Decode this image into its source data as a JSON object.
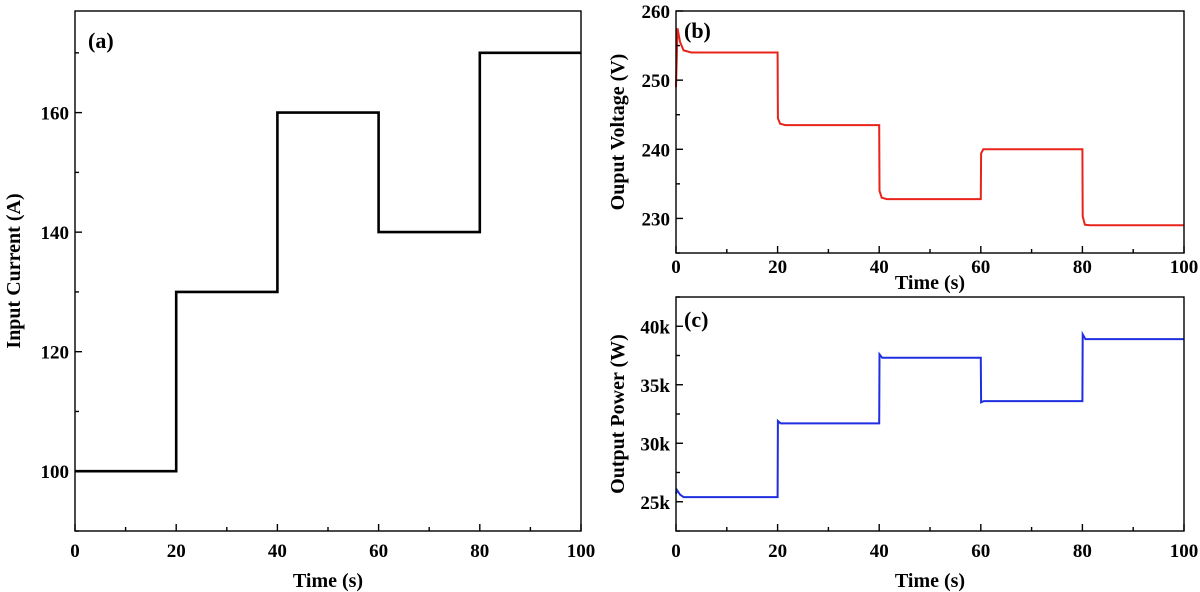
{
  "chart_data": [
    {
      "type": "line",
      "panel_label": "(a)",
      "xlabel": "Time (s)",
      "ylabel": "Input Current (A)",
      "xlim": [
        0,
        100
      ],
      "ylim": [
        90,
        177
      ],
      "x_ticks": [
        0,
        20,
        40,
        60,
        80,
        100
      ],
      "y_ticks": [
        100,
        120,
        140,
        160
      ],
      "y_tick_labels": [
        "100",
        "120",
        "140",
        "160"
      ],
      "grid": false,
      "series": [
        {
          "color": "#000000",
          "x": [
            0,
            20,
            20,
            40,
            40,
            60,
            60,
            80,
            80,
            100
          ],
          "y": [
            100,
            100,
            130,
            130,
            160,
            160,
            140,
            140,
            170,
            170
          ]
        }
      ]
    },
    {
      "type": "line",
      "panel_label": "(b)",
      "xlabel": "Time (s)",
      "ylabel": "Ouput Voltage (V)",
      "xlim": [
        0,
        100
      ],
      "ylim": [
        225,
        260
      ],
      "x_ticks": [
        0,
        20,
        40,
        60,
        80,
        100
      ],
      "y_ticks": [
        230,
        240,
        250,
        260
      ],
      "y_tick_labels": [
        "230",
        "240",
        "250",
        "260"
      ],
      "grid": false,
      "series": [
        {
          "color": "#e8231a",
          "x": [
            0,
            0.3,
            0.8,
            1.5,
            3,
            20,
            20.05,
            20.5,
            21.5,
            40,
            40.05,
            40.5,
            41.5,
            60,
            60.05,
            60.5,
            61.5,
            80,
            80.05,
            80.5,
            81.5,
            100
          ],
          "y": [
            249,
            257.5,
            255.5,
            254.3,
            254,
            254,
            244.5,
            243.7,
            243.5,
            243.5,
            234,
            233,
            232.8,
            232.8,
            239.4,
            240,
            240,
            240,
            230.3,
            229.1,
            229,
            229
          ]
        }
      ]
    },
    {
      "type": "line",
      "panel_label": "(c)",
      "xlabel": "Time (s)",
      "ylabel": "Output Power (W)",
      "xlim": [
        0,
        100
      ],
      "ylim": [
        22500,
        42500
      ],
      "x_ticks": [
        0,
        20,
        40,
        60,
        80,
        100
      ],
      "y_ticks": [
        25000,
        30000,
        35000,
        40000
      ],
      "y_tick_labels": [
        "25k",
        "30k",
        "35k",
        "40k"
      ],
      "grid": false,
      "series": [
        {
          "color": "#1f2fe0",
          "x": [
            0,
            0.2,
            0.8,
            1.5,
            20,
            20.05,
            20.6,
            40,
            40.05,
            40.6,
            60,
            60.05,
            60.6,
            80,
            80.05,
            80.6,
            100
          ],
          "y": [
            25700,
            26000,
            25600,
            25400,
            25400,
            31900,
            31700,
            31700,
            37600,
            37300,
            37300,
            33500,
            33600,
            33600,
            39300,
            38900,
            38900
          ]
        }
      ]
    }
  ]
}
